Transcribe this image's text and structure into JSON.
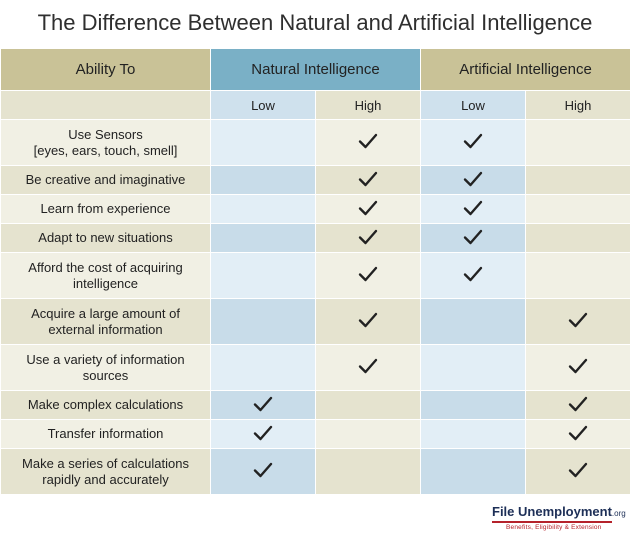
{
  "title": "The Difference Between Natural and Artificial Intelligence",
  "table": {
    "headers": {
      "ability": "Ability To",
      "natural": "Natural Intelligence",
      "artificial": "Artificial Intelligence"
    },
    "subheaders": {
      "nat_low": "Low",
      "nat_high": "High",
      "art_low": "Low",
      "art_high": "High"
    },
    "rows": [
      {
        "label_line1": "Use Sensors",
        "label_line2": "[eyes, ears, touch, smell]",
        "nat": "High",
        "art": "Low"
      },
      {
        "label": "Be creative and imaginative",
        "nat": "High",
        "art": "Low"
      },
      {
        "label": "Learn from experience",
        "nat": "High",
        "art": "Low"
      },
      {
        "label": "Adapt to new situations",
        "nat": "High",
        "art": "Low"
      },
      {
        "label_line1": "Afford the cost of acquiring",
        "label_line2": "intelligence",
        "nat": "High",
        "art": "Low"
      },
      {
        "label_line1": "Acquire a large amount of",
        "label_line2": "external information",
        "nat": "High",
        "art": "High"
      },
      {
        "label_line1": "Use a variety of information",
        "label_line2": "sources",
        "nat": "High",
        "art": "High"
      },
      {
        "label": "Make complex calculations",
        "nat": "Low",
        "art": "High"
      },
      {
        "label": "Transfer information",
        "nat": "Low",
        "art": "High"
      },
      {
        "label_line1": "Make a series of calculations",
        "label_line2": "rapidly and accurately",
        "nat": "Low",
        "art": "High"
      }
    ]
  },
  "logo": {
    "name": "File Unemployment",
    "suffix": ".org",
    "tagline": "Benefits, Eligibility & Extension"
  },
  "icons": {
    "mark": "checkmark-icon"
  },
  "colors": {
    "natural_header": "#7ab0c6",
    "artificial_header": "#c9c297",
    "check": "#222222",
    "logo_red": "#b5222b",
    "logo_navy": "#1d2f57"
  }
}
